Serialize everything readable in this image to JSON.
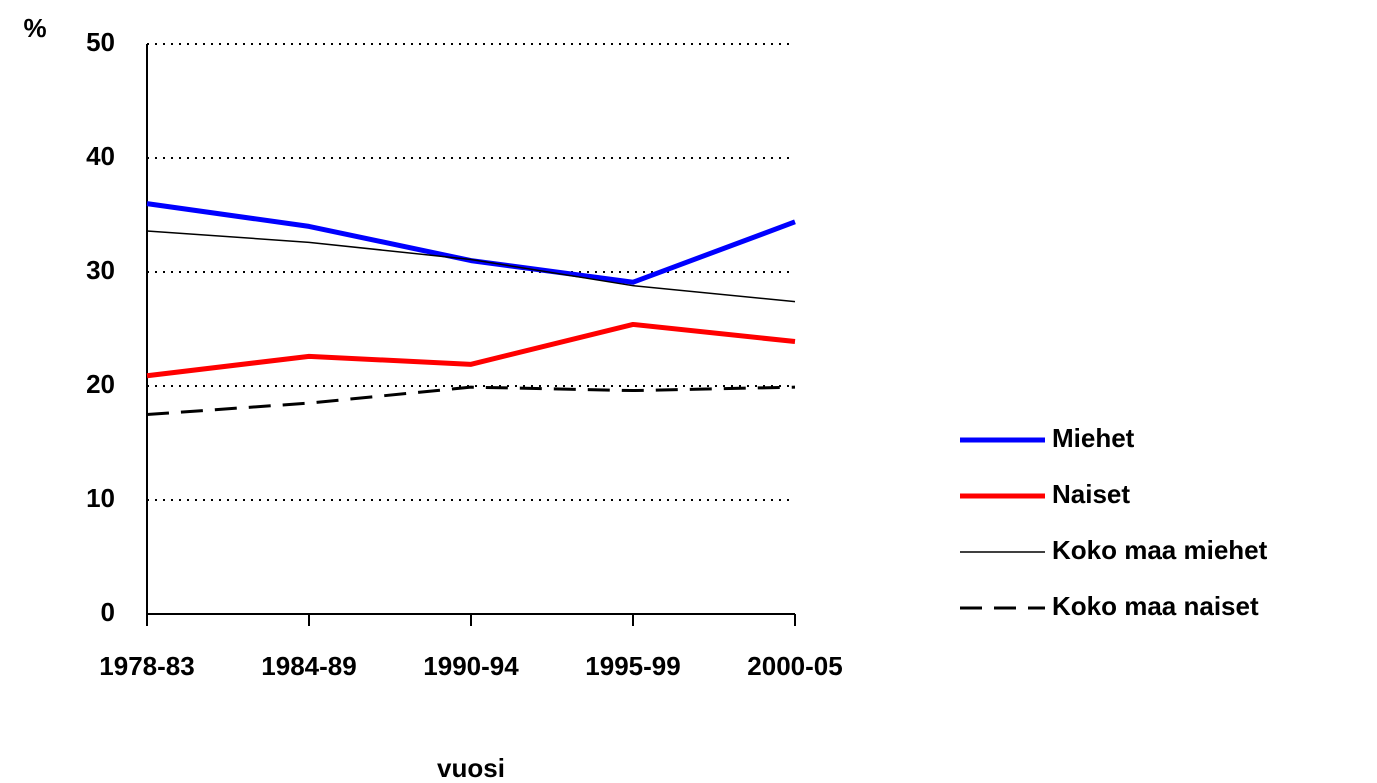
{
  "chart_data": {
    "type": "line",
    "y_label": "%",
    "x_label": "vuosi",
    "categories": [
      "1978-83",
      "1984-89",
      "1990-94",
      "1995-99",
      "2000-05"
    ],
    "series": [
      {
        "name": "Miehet",
        "color": "#0000ff",
        "line_style": "solid",
        "values": [
          36,
          34,
          31,
          29.1,
          34.4
        ]
      },
      {
        "name": "Naiset",
        "color": "#ff0000",
        "line_style": "solid",
        "values": [
          20.9,
          22.6,
          21.9,
          25.4,
          23.9
        ]
      },
      {
        "name": "Koko maa miehet",
        "color": "#000000",
        "line_style": "solid",
        "values": [
          33.6,
          32.6,
          31.1,
          28.8,
          27.4
        ]
      },
      {
        "name": "Koko maa naiset",
        "color": "#000000",
        "line_style": "dashed",
        "values": [
          17.5,
          18.5,
          19.9,
          19.6,
          19.9
        ]
      }
    ],
    "ylim": [
      0,
      50
    ],
    "yticks": [
      0,
      10,
      20,
      30,
      40,
      50
    ],
    "grid": true,
    "legend": "right"
  }
}
